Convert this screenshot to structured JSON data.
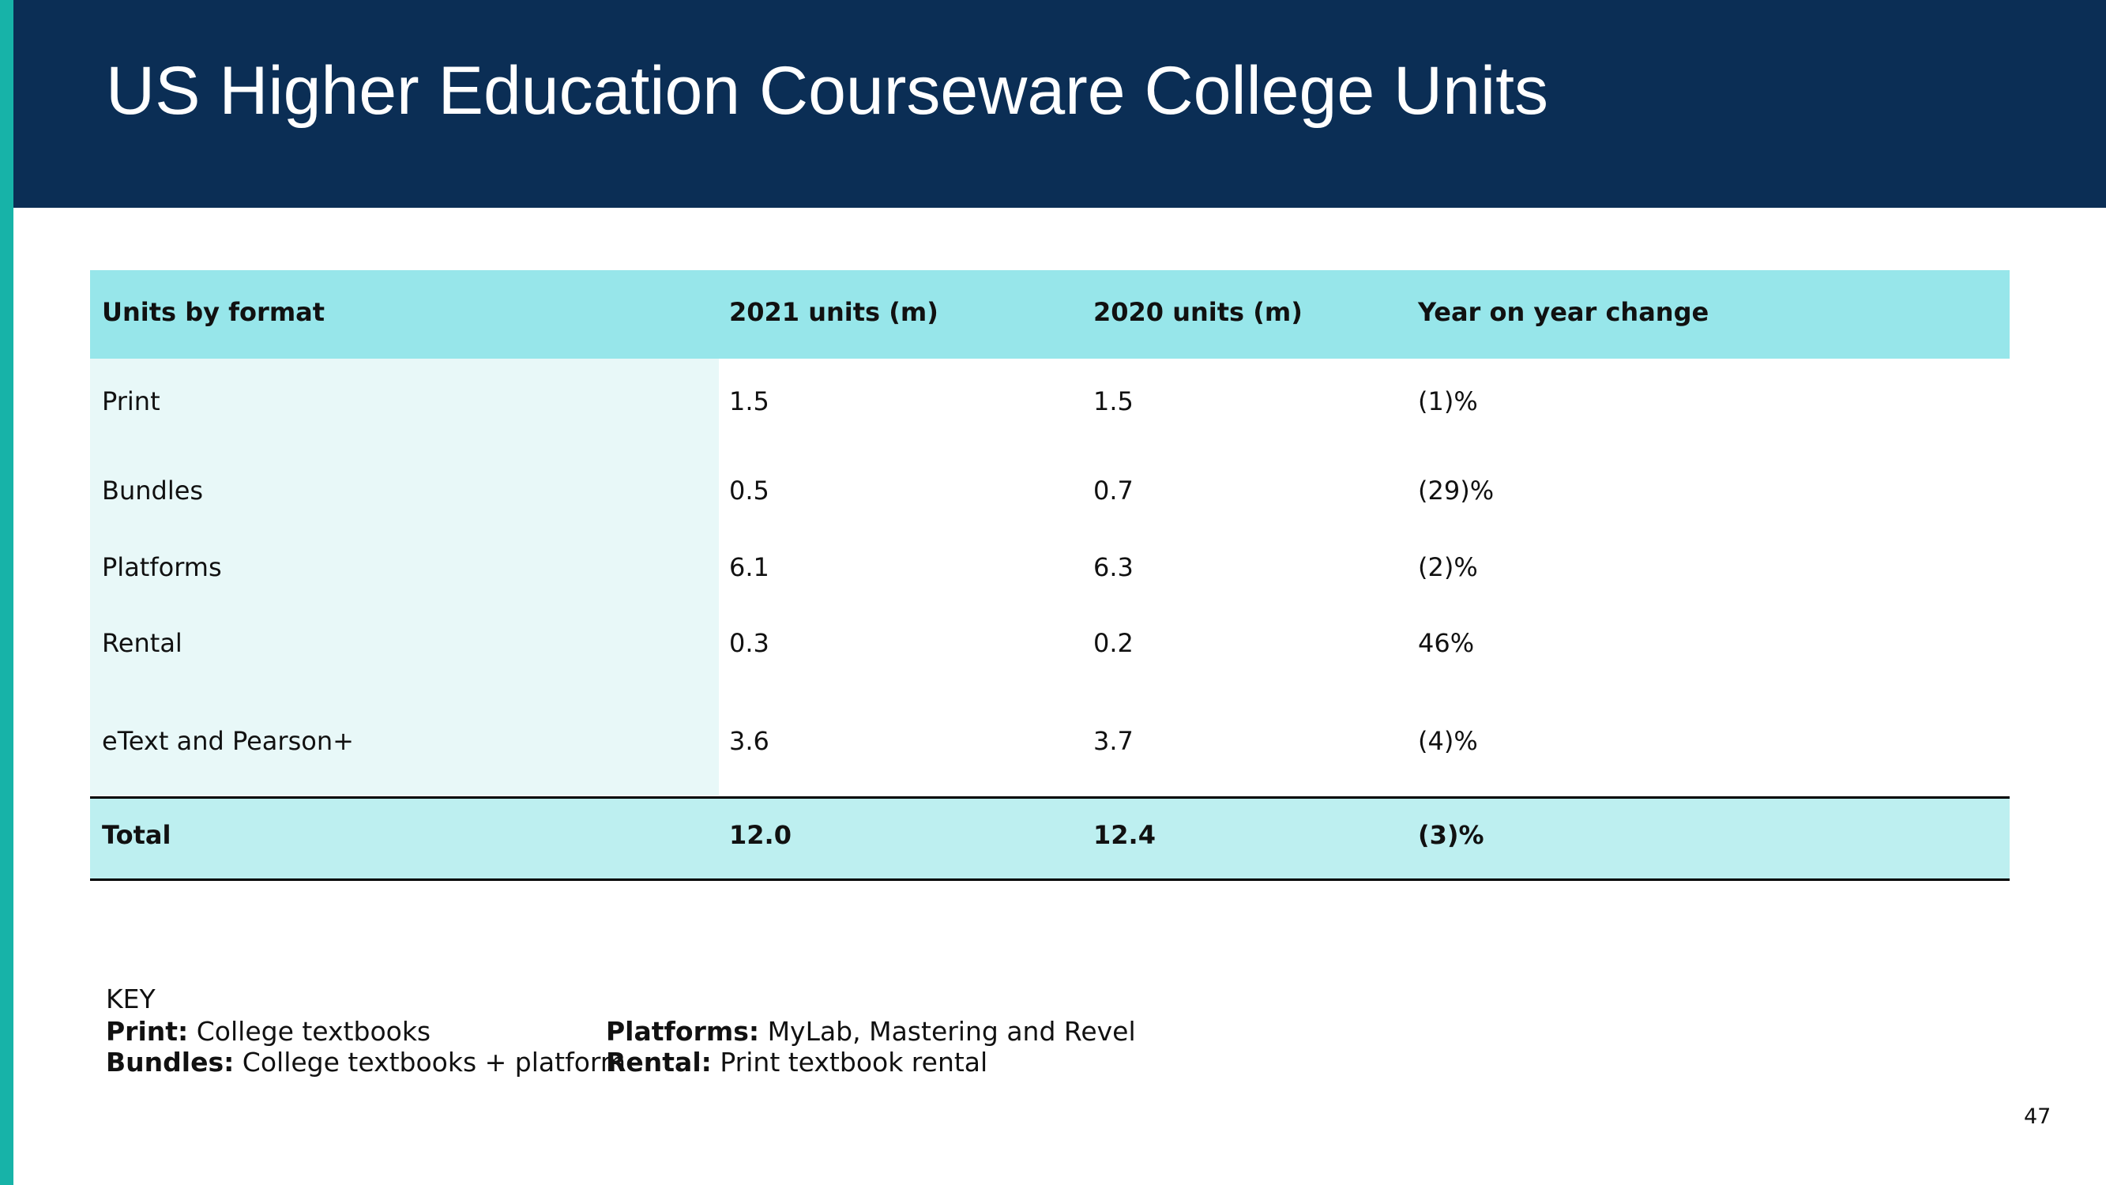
{
  "header": {
    "title": "US Higher Education Courseware College Units"
  },
  "table": {
    "columns": [
      "Units by format",
      "2021 units (m)",
      "2020 units (m)",
      "Year on year change"
    ],
    "rows": [
      [
        "Print",
        "1.5",
        "1.5",
        "(1)%"
      ],
      [
        "Bundles",
        "0.5",
        "0.7",
        "(29)%"
      ],
      [
        "Platforms",
        "6.1",
        "6.3",
        "(2)%"
      ],
      [
        "Rental",
        "0.3",
        "0.2",
        "46%"
      ],
      [
        "eText and Pearson+",
        "3.6",
        "3.7",
        "(4)%"
      ]
    ],
    "total": [
      "Total",
      "12.0",
      "12.4",
      "(3)%"
    ]
  },
  "key": {
    "label": "KEY",
    "items": [
      {
        "term": "Print:",
        "desc": "College textbooks"
      },
      {
        "term": "Bundles:",
        "desc": "College textbooks + platform"
      },
      {
        "term": "Platforms:",
        "desc": "MyLab, Mastering and Revel"
      },
      {
        "term": "Rental:",
        "desc": "Print textbook rental"
      }
    ]
  },
  "page_number": "47"
}
